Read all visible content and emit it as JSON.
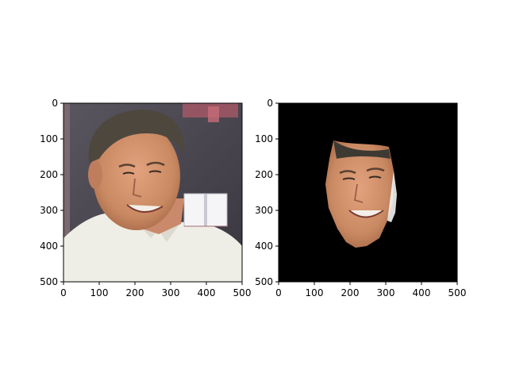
{
  "chart_data": [
    {
      "type": "image",
      "xlim": [
        0,
        500
      ],
      "ylim": [
        500,
        0
      ],
      "x_ticks": [
        0,
        100,
        200,
        300,
        400,
        500
      ],
      "y_ticks": [
        0,
        100,
        200,
        300,
        400,
        500
      ],
      "x_tick_labels": [
        "0",
        "100",
        "200",
        "300",
        "400",
        "500"
      ],
      "y_tick_labels": [
        "0",
        "100",
        "200",
        "300",
        "400",
        "500"
      ]
    },
    {
      "type": "image",
      "xlim": [
        0,
        500
      ],
      "ylim": [
        500,
        0
      ],
      "x_ticks": [
        0,
        100,
        200,
        300,
        400,
        500
      ],
      "y_ticks": [
        0,
        100,
        200,
        300,
        400,
        500
      ],
      "x_tick_labels": [
        "0",
        "100",
        "200",
        "300",
        "400",
        "500"
      ],
      "y_tick_labels": [
        "0",
        "100",
        "200",
        "300",
        "400",
        "500"
      ],
      "background_color": "#000000"
    }
  ]
}
